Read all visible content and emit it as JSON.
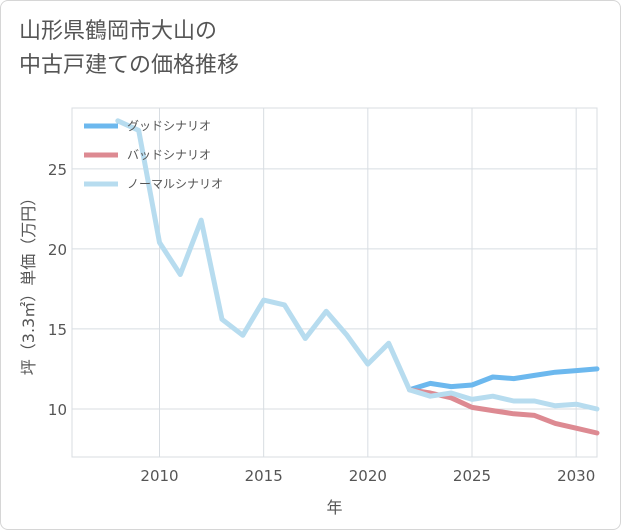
{
  "title_lines": [
    "山形県鶴岡市大山の",
    "中古戸建ての価格推移"
  ],
  "chart_data": {
    "type": "line",
    "title": "山形県鶴岡市大山の中古戸建ての価格推移",
    "xlabel": "年",
    "ylabel": "坪（3.3㎡）単価（万円）",
    "xlim": [
      2005.8,
      2031.0
    ],
    "ylim": [
      7.0,
      28.8
    ],
    "xticks": [
      2010,
      2015,
      2020,
      2025,
      2030
    ],
    "yticks": [
      10,
      15,
      20,
      25
    ],
    "grid": true,
    "legend_position": "top-left",
    "series": [
      {
        "name": "グッドシナリオ",
        "color": "#6cb8ee",
        "x": [
          2022,
          2023,
          2024,
          2025,
          2026,
          2027,
          2028,
          2029,
          2030,
          2031
        ],
        "values": [
          11.2,
          11.6,
          11.4,
          11.5,
          12.0,
          11.9,
          12.1,
          12.3,
          12.4,
          12.5
        ]
      },
      {
        "name": "バッドシナリオ",
        "color": "#dd8a92",
        "x": [
          2022,
          2023,
          2024,
          2025,
          2026,
          2027,
          2028,
          2029,
          2030,
          2031
        ],
        "values": [
          11.2,
          11.0,
          10.7,
          10.1,
          9.9,
          9.7,
          9.6,
          9.1,
          8.8,
          8.5
        ]
      },
      {
        "name": "ノーマルシナリオ",
        "color": "#b7dcef",
        "x": [
          2008,
          2009,
          2010,
          2011,
          2012,
          2013,
          2014,
          2015,
          2016,
          2017,
          2018,
          2019,
          2020,
          2021,
          2022,
          2023,
          2024,
          2025,
          2026,
          2027,
          2028,
          2029,
          2030,
          2031
        ],
        "values": [
          28.0,
          27.4,
          20.4,
          18.4,
          21.8,
          15.6,
          14.6,
          16.8,
          16.5,
          14.4,
          16.1,
          14.6,
          12.8,
          14.1,
          11.2,
          10.8,
          11.0,
          10.6,
          10.8,
          10.5,
          10.5,
          10.2,
          10.3,
          10.0
        ]
      }
    ]
  }
}
